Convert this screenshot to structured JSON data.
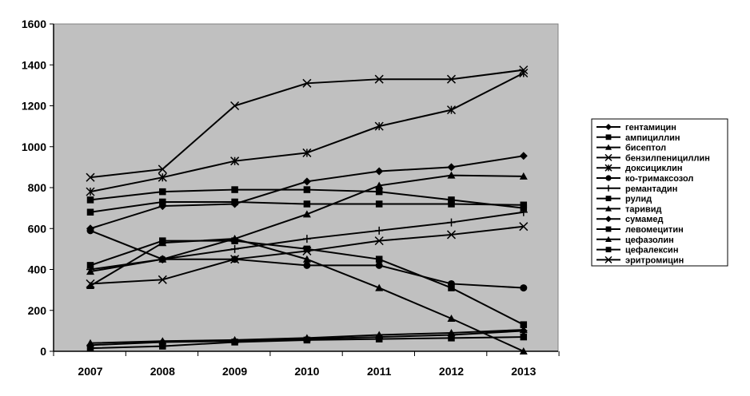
{
  "chart_data": {
    "type": "line",
    "title": "",
    "xlabel": "",
    "ylabel": "",
    "categories": [
      "2007",
      "2008",
      "2009",
      "2010",
      "2011",
      "2012",
      "2013"
    ],
    "ylim": [
      0,
      1600
    ],
    "yticks": [
      0,
      200,
      400,
      600,
      800,
      1000,
      1200,
      1400,
      1600
    ],
    "grid": false,
    "plot_background": "#c0c0c0",
    "line_color": "#000000",
    "legend_position": "right",
    "series": [
      {
        "name": "гентамицин",
        "marker": "diamond",
        "values": [
          30,
          45,
          50,
          60,
          70,
          80,
          100
        ]
      },
      {
        "name": "ампициллин",
        "marker": "square",
        "values": [
          420,
          540,
          540,
          500,
          450,
          310,
          130
        ]
      },
      {
        "name": "бисептол",
        "marker": "triangle",
        "values": [
          390,
          450,
          550,
          670,
          810,
          860,
          855
        ]
      },
      {
        "name": "бензилпенициллин",
        "marker": "x",
        "values": [
          330,
          350,
          450,
          490,
          540,
          570,
          610
        ]
      },
      {
        "name": "доксициклин",
        "marker": "star",
        "values": [
          780,
          850,
          930,
          970,
          1100,
          1180,
          1360
        ]
      },
      {
        "name": "ко-тримаксозол",
        "marker": "circle",
        "values": [
          590,
          450,
          450,
          420,
          420,
          330,
          310
        ]
      },
      {
        "name": "ремантадин",
        "marker": "plus",
        "values": [
          400,
          450,
          500,
          550,
          590,
          630,
          680
        ]
      },
      {
        "name": "рулид",
        "marker": "square",
        "values": [
          740,
          780,
          790,
          790,
          780,
          740,
          700
        ]
      },
      {
        "name": "таривид",
        "marker": "triangle",
        "values": [
          320,
          530,
          550,
          450,
          310,
          160,
          0
        ]
      },
      {
        "name": "сумамед",
        "marker": "diamond",
        "values": [
          600,
          710,
          720,
          830,
          880,
          900,
          955
        ]
      },
      {
        "name": "левомецитин",
        "marker": "square",
        "values": [
          680,
          730,
          730,
          720,
          720,
          720,
          715
        ]
      },
      {
        "name": "цефазолин",
        "marker": "triangle",
        "values": [
          40,
          50,
          55,
          65,
          80,
          90,
          105
        ]
      },
      {
        "name": "цефалексин",
        "marker": "square",
        "values": [
          15,
          25,
          45,
          55,
          60,
          65,
          70
        ]
      },
      {
        "name": "эритромицин",
        "marker": "x",
        "values": [
          850,
          890,
          1200,
          1310,
          1330,
          1330,
          1375
        ]
      }
    ]
  }
}
